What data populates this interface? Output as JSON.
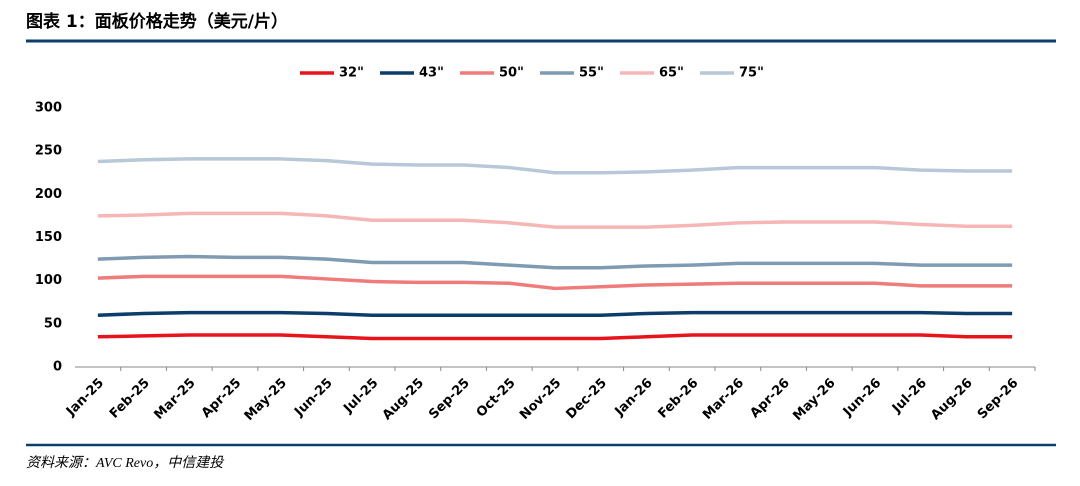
{
  "title": "图表 1：面板价格走势（美元/片）",
  "source": "资料来源：AVC Revo，中信建投",
  "chart_data": {
    "type": "line",
    "categories": [
      "Jan-25",
      "Feb-25",
      "Mar-25",
      "Apr-25",
      "May-25",
      "Jun-25",
      "Jul-25",
      "Aug-25",
      "Sep-25",
      "Oct-25",
      "Nov-25",
      "Dec-25",
      "Jan-26",
      "Feb-26",
      "Mar-26",
      "Apr-26",
      "May-26",
      "Jun-26",
      "Jul-26",
      "Aug-26",
      "Sep-26"
    ],
    "series": [
      {
        "name": "32\"",
        "color": "#e8141c",
        "values": [
          35,
          36,
          37,
          37,
          37,
          35,
          33,
          33,
          33,
          33,
          33,
          33,
          35,
          37,
          37,
          37,
          37,
          37,
          37,
          35,
          35
        ]
      },
      {
        "name": "43\"",
        "color": "#0d3d6b",
        "values": [
          60,
          62,
          63,
          63,
          63,
          62,
          60,
          60,
          60,
          60,
          60,
          60,
          62,
          63,
          63,
          63,
          63,
          63,
          63,
          62,
          62
        ]
      },
      {
        "name": "50\"",
        "color": "#ef7b7b",
        "values": [
          103,
          105,
          105,
          105,
          105,
          102,
          99,
          98,
          98,
          97,
          91,
          93,
          95,
          96,
          97,
          97,
          97,
          97,
          94,
          94,
          94
        ]
      },
      {
        "name": "55\"",
        "color": "#7f9bb3",
        "values": [
          125,
          127,
          128,
          127,
          127,
          125,
          121,
          121,
          121,
          118,
          115,
          115,
          117,
          118,
          120,
          120,
          120,
          120,
          118,
          118,
          118
        ]
      },
      {
        "name": "65\"",
        "color": "#f7b6b6",
        "values": [
          175,
          176,
          178,
          178,
          178,
          175,
          170,
          170,
          170,
          167,
          162,
          162,
          162,
          164,
          167,
          168,
          168,
          168,
          165,
          163,
          163
        ]
      },
      {
        "name": "75\"",
        "color": "#b7c8d8",
        "values": [
          238,
          240,
          241,
          241,
          241,
          239,
          235,
          234,
          234,
          231,
          225,
          225,
          226,
          228,
          231,
          231,
          231,
          231,
          228,
          227,
          227
        ]
      }
    ],
    "ylim": [
      0,
      300
    ],
    "yticks": [
      0,
      50,
      100,
      150,
      200,
      250,
      300
    ],
    "legend": "top",
    "grid": false
  }
}
